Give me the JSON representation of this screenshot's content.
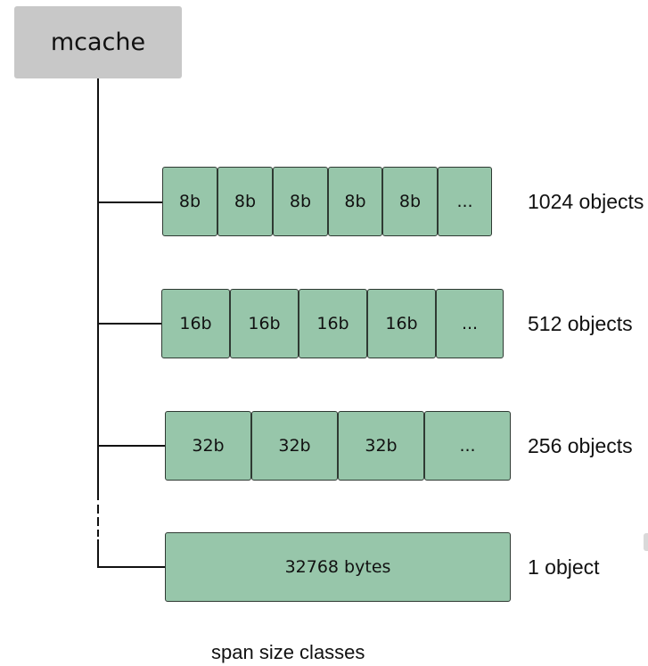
{
  "root": {
    "label": "mcache"
  },
  "size_classes": [
    {
      "cells": [
        "8b",
        "8b",
        "8b",
        "8b",
        "8b",
        "..."
      ],
      "count": "1024 objects"
    },
    {
      "cells": [
        "16b",
        "16b",
        "16b",
        "16b",
        "..."
      ],
      "count": "512 objects"
    },
    {
      "cells": [
        "32b",
        "32b",
        "32b",
        "..."
      ],
      "count": "256 objects"
    },
    {
      "cells": [
        "32768 bytes"
      ],
      "count": "1 object"
    }
  ],
  "caption": "span size classes",
  "colors": {
    "root_fill": "#c8c8c8",
    "cell_fill": "#97c6aa",
    "cell_border": "#2f3a33",
    "line": "#111111"
  }
}
